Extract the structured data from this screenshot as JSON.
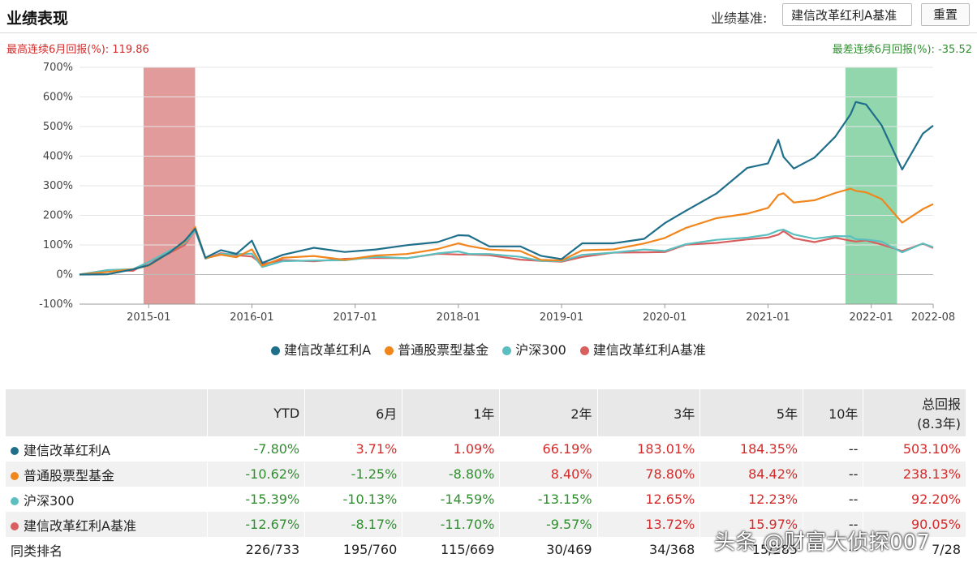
{
  "header": {
    "title": "业绩表现",
    "benchmark_label": "业绩基准:",
    "benchmark_value": "建信改革红利A基准",
    "reset_label": "重置"
  },
  "stats": {
    "best_label": "最高连续6月回报(%):",
    "best_value": "119.86",
    "worst_label": "最差连续6月回报(%):",
    "worst_value": "-35.52"
  },
  "colors": {
    "fund": "#1f6f8b",
    "peer": "#f0861c",
    "hs300": "#5bbfbf",
    "bench": "#d95f5f",
    "best_band": "#dc8a8a",
    "worst_band": "#7fcf9f"
  },
  "chart_data": {
    "type": "line",
    "title": "业绩表现",
    "ylim": [
      -100,
      700
    ],
    "yticks": [
      "700%",
      "600%",
      "500%",
      "400%",
      "300%",
      "200%",
      "100%",
      "0%",
      "-100%"
    ],
    "xlim": [
      2014.33,
      2022.6
    ],
    "xticks": [
      {
        "t": 2015.0,
        "label": "2015-01"
      },
      {
        "t": 2016.0,
        "label": "2016-01"
      },
      {
        "t": 2017.0,
        "label": "2017-01"
      },
      {
        "t": 2018.0,
        "label": "2018-01"
      },
      {
        "t": 2019.0,
        "label": "2019-01"
      },
      {
        "t": 2020.0,
        "label": "2020-01"
      },
      {
        "t": 2021.0,
        "label": "2021-01"
      },
      {
        "t": 2022.0,
        "label": "2022-01"
      },
      {
        "t": 2022.6,
        "label": "2022-08"
      }
    ],
    "highlights": [
      {
        "name": "best-6m",
        "from": 2014.95,
        "to": 2015.45
      },
      {
        "name": "worst-6m",
        "from": 2021.75,
        "to": 2022.25
      }
    ],
    "x": [
      2014.33,
      2014.6,
      2014.85,
      2015.0,
      2015.2,
      2015.35,
      2015.45,
      2015.55,
      2015.7,
      2015.85,
      2016.0,
      2016.1,
      2016.3,
      2016.6,
      2016.9,
      2017.2,
      2017.5,
      2017.8,
      2018.0,
      2018.1,
      2018.3,
      2018.6,
      2018.8,
      2019.0,
      2019.2,
      2019.5,
      2019.8,
      2020.0,
      2020.2,
      2020.5,
      2020.8,
      2021.0,
      2021.1,
      2021.15,
      2021.25,
      2021.45,
      2021.65,
      2021.8,
      2021.85,
      2021.95,
      2022.1,
      2022.3,
      2022.5,
      2022.6
    ],
    "series": [
      {
        "name": "建信改革红利A",
        "values": [
          0,
          5,
          12,
          35,
          75,
          110,
          160,
          55,
          80,
          75,
          110,
          40,
          70,
          85,
          80,
          85,
          95,
          115,
          130,
          130,
          100,
          90,
          65,
          55,
          100,
          110,
          120,
          170,
          220,
          270,
          360,
          380,
          450,
          400,
          360,
          390,
          470,
          540,
          580,
          580,
          500,
          355,
          480,
          503
        ]
      },
      {
        "name": "普通股票型基金",
        "values": [
          0,
          8,
          15,
          35,
          70,
          110,
          165,
          50,
          70,
          60,
          80,
          35,
          55,
          60,
          55,
          60,
          70,
          90,
          100,
          100,
          85,
          75,
          55,
          45,
          80,
          90,
          100,
          125,
          160,
          185,
          210,
          225,
          265,
          280,
          240,
          250,
          280,
          285,
          285,
          280,
          250,
          180,
          220,
          238
        ]
      },
      {
        "name": "沪深300",
        "values": [
          0,
          10,
          20,
          45,
          75,
          110,
          150,
          50,
          75,
          65,
          70,
          30,
          40,
          50,
          50,
          55,
          60,
          70,
          75,
          75,
          65,
          60,
          50,
          40,
          70,
          75,
          80,
          85,
          100,
          115,
          130,
          130,
          150,
          155,
          130,
          125,
          130,
          125,
          125,
          115,
          110,
          80,
          100,
          92
        ]
      },
      {
        "name": "建信改革红利A基准",
        "values": [
          0,
          10,
          18,
          40,
          70,
          105,
          145,
          55,
          75,
          60,
          65,
          35,
          45,
          50,
          50,
          55,
          60,
          65,
          70,
          70,
          60,
          55,
          45,
          40,
          65,
          70,
          75,
          80,
          95,
          110,
          120,
          120,
          140,
          145,
          120,
          115,
          120,
          115,
          115,
          110,
          105,
          80,
          100,
          90
        ]
      }
    ]
  },
  "legend": [
    "建信改革红利A",
    "普通股票型基金",
    "沪深300",
    "建信改革红利A基准"
  ],
  "table": {
    "headers": [
      "",
      "YTD",
      "6月",
      "1年",
      "2年",
      "3年",
      "5年",
      "10年",
      "总回报",
      "(8.3年)"
    ],
    "rows": [
      {
        "name": "建信改革红利A",
        "values": [
          "-7.80%",
          "3.71%",
          "1.09%",
          "66.19%",
          "183.01%",
          "184.35%",
          "--",
          "503.10%"
        ]
      },
      {
        "name": "普通股票型基金",
        "values": [
          "-10.62%",
          "-1.25%",
          "-8.80%",
          "8.40%",
          "78.80%",
          "84.42%",
          "--",
          "238.13%"
        ]
      },
      {
        "name": "沪深300",
        "values": [
          "-15.39%",
          "-10.13%",
          "-14.59%",
          "-13.15%",
          "12.65%",
          "12.23%",
          "--",
          "92.20%"
        ]
      },
      {
        "name": "建信改革红利A基准",
        "values": [
          "-12.67%",
          "-8.17%",
          "-11.70%",
          "-9.57%",
          "13.72%",
          "15.97%",
          "--",
          "90.05%"
        ]
      }
    ],
    "rank_row": {
      "name": "同类排名",
      "values": [
        "226/733",
        "195/760",
        "115/669",
        "30/469",
        "34/368",
        "15/285",
        "--",
        "7/28"
      ]
    }
  },
  "watermark": "头条 @财富大侦探007"
}
